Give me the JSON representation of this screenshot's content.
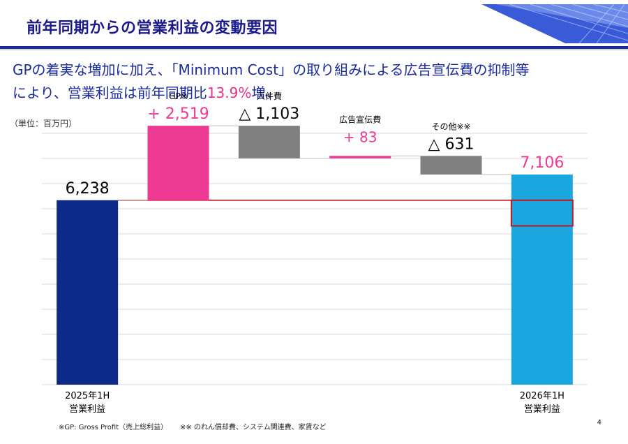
{
  "page": {
    "title": "前年同期からの営業利益の変動要因",
    "lead_text_1": "GPの着実な増加に加え、「Minimum Cost」の取り組みによる広告宣伝費の抑制等",
    "lead_text_2a": "により、営業利益は前年同期比",
    "lead_highlight": "13.9%",
    "lead_text_2b": "増。",
    "unit": "（単位：百万円）",
    "footnote_1": "※GP: Gross Profit（売上総利益）",
    "footnote_2": "※※ のれん償却費、システム関連費、家賃など",
    "page_number": "4"
  },
  "colors": {
    "title": "#1a1a8c",
    "accent_rule": "#1c2a9a",
    "lead_text": "#1a2a9c",
    "highlight": "#e8308a",
    "start_bar": "#0d2a8a",
    "increase_bar": "#ee3a93",
    "decrease_bar": "#808080",
    "end_bar": "#1aa6df",
    "reference_line": "#c0141e",
    "grid": "#d9d9d9"
  },
  "chart_data": {
    "type": "bar",
    "subtype": "waterfall",
    "ylim": [
      0,
      8500
    ],
    "grid": true,
    "categories": [
      {
        "top_label": "",
        "bottom_label_1": "2025年1H",
        "bottom_label_2": "営業利益"
      },
      {
        "top_label": "GP※",
        "bottom_label_1": "",
        "bottom_label_2": ""
      },
      {
        "top_label": "人件費",
        "bottom_label_1": "",
        "bottom_label_2": ""
      },
      {
        "top_label": "広告宣伝費",
        "bottom_label_1": "",
        "bottom_label_2": ""
      },
      {
        "top_label": "その他※※",
        "bottom_label_1": "",
        "bottom_label_2": ""
      },
      {
        "top_label": "",
        "bottom_label_1": "2026年1H",
        "bottom_label_2": "営業利益"
      }
    ],
    "bars": [
      {
        "kind": "total",
        "start": 0,
        "end": 6238,
        "value_label": "6,238",
        "color_key": "start_bar"
      },
      {
        "kind": "increase",
        "start": 6238,
        "end": 8757,
        "value_label": "+ 2,519",
        "color_key": "increase_bar"
      },
      {
        "kind": "decrease",
        "start": 8757,
        "end": 7654,
        "value_label": "△ 1,103",
        "color_key": "decrease_bar"
      },
      {
        "kind": "increase",
        "start": 7654,
        "end": 7737,
        "value_label": "+ 83",
        "color_key": "increase_bar"
      },
      {
        "kind": "decrease",
        "start": 7737,
        "end": 7106,
        "value_label": "△ 631",
        "color_key": "decrease_bar"
      },
      {
        "kind": "total",
        "start": 0,
        "end": 7106,
        "value_label": "7,106",
        "color_key": "end_bar"
      }
    ],
    "reference_value": 6238
  }
}
